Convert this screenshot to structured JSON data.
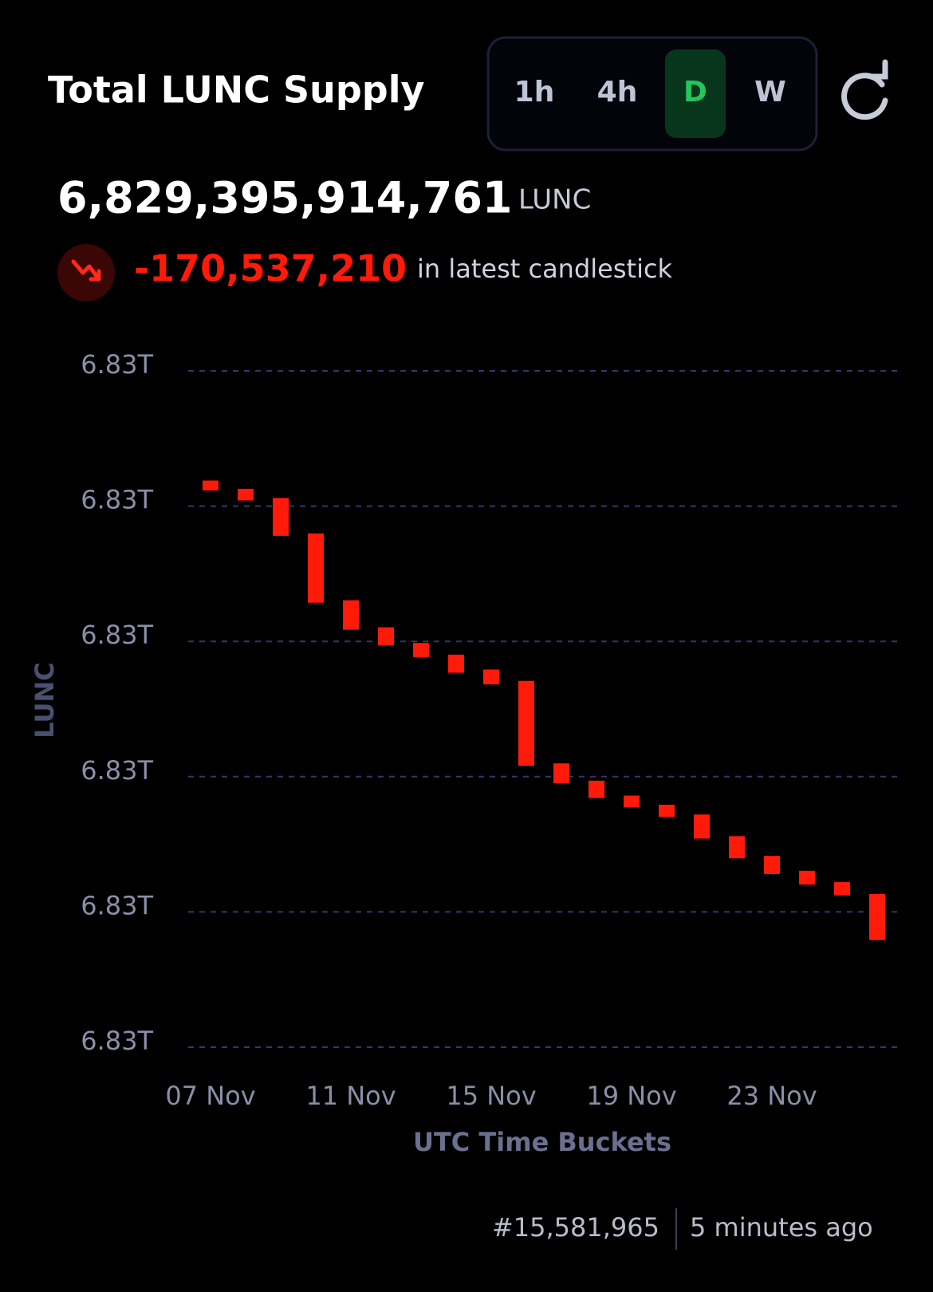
{
  "header": {
    "title": "Total LUNC Supply",
    "intervals": [
      "1h",
      "4h",
      "D",
      "W"
    ],
    "selected_interval": 2,
    "supply": "6,829,395,914,761",
    "unit": "LUNC",
    "change": "-170,537,210",
    "change_note": "in latest candlestick"
  },
  "chart_data": {
    "type": "candlestick",
    "ylabel": "LUNC",
    "xlabel": "UTC Time Buckets",
    "color": "#ff1a0a",
    "categories": [
      "07 Nov",
      null,
      null,
      null,
      "11 Nov",
      null,
      null,
      null,
      "15 Nov",
      null,
      null,
      null,
      "19 Nov",
      null,
      null,
      null,
      "23 Nov",
      null,
      null,
      null
    ],
    "open": [
      6831094500000,
      6831064000000,
      6831030000000,
      6830899000000,
      6830652000000,
      6830552000000,
      6830494000000,
      6830451000000,
      6830396000000,
      6830354000000,
      6830049000000,
      6829985000000,
      6829930000000,
      6829896000000,
      6829860000000,
      6829780000000,
      6829707000000,
      6829652000000,
      6829610000000,
      6829566451971
    ],
    "close": [
      6831058000000,
      6831021000000,
      6830890000000,
      6830643000000,
      6830543000000,
      6830485000000,
      6830442000000,
      6830384000000,
      6830341000000,
      6830040000000,
      6829976000000,
      6829921000000,
      6829887000000,
      6829851000000,
      6829771000000,
      6829698000000,
      6829640000000,
      6829601000000,
      6829561000000,
      6829395914761
    ],
    "ylim": [
      6829000000000,
      6831500000000
    ],
    "yticks": [
      {
        "value": 6829000000000,
        "label": "6.83T"
      },
      {
        "value": 6829500000000,
        "label": "6.83T"
      },
      {
        "value": 6830000000000,
        "label": "6.83T"
      },
      {
        "value": 6830500000000,
        "label": "6.83T"
      },
      {
        "value": 6831000000000,
        "label": "6.83T"
      },
      {
        "value": 6831500000000,
        "label": "6.83T"
      }
    ],
    "grid": true
  },
  "footer": {
    "block": "#15,581,965",
    "updated": "5 minutes ago"
  }
}
